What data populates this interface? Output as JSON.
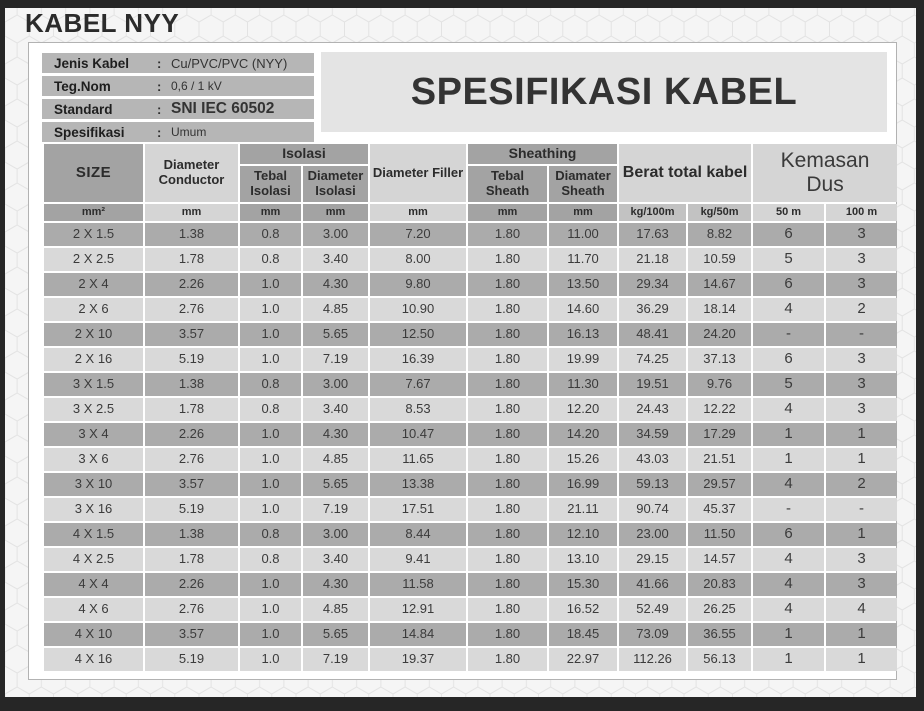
{
  "page_title": "KABEL NYY",
  "banner_title": "SPESIFIKASI KABEL",
  "info": {
    "separator": ":",
    "rows": [
      {
        "label": "Jenis Kabel",
        "value": "Cu/PVC/PVC (NYY)"
      },
      {
        "label": "Teg.Nom",
        "value": "0,6 / 1 kV"
      },
      {
        "label": "Standard",
        "value": "SNI IEC 60502"
      },
      {
        "label": "Spesifikasi",
        "value": "Umum"
      }
    ]
  },
  "table": {
    "headers": {
      "size": "SIZE",
      "diameter_conductor": "Diameter Conductor",
      "isolasi_group": "Isolasi",
      "tebal_isolasi": "Tebal Isolasi",
      "diameter_isolasi": "Diameter Isolasi",
      "diameter_filler": "Diameter Filler",
      "sheathing_group": "Sheathing",
      "tebal_sheath": "Tebal Sheath",
      "diamater_sheath": "Diamater Sheath",
      "berat_total": "Berat total kabel",
      "kemasan_dus": "Kemasan Dus"
    },
    "units": [
      "mm²",
      "mm",
      "mm",
      "mm",
      "mm",
      "mm",
      "mm",
      "kg/100m",
      "kg/50m",
      "50 m",
      "100 m"
    ],
    "rows": [
      [
        "2 X 1.5",
        "1.38",
        "0.8",
        "3.00",
        "7.20",
        "1.80",
        "11.00",
        "17.63",
        "8.82",
        "6",
        "3"
      ],
      [
        "2 X 2.5",
        "1.78",
        "0.8",
        "3.40",
        "8.00",
        "1.80",
        "11.70",
        "21.18",
        "10.59",
        "5",
        "3"
      ],
      [
        "2 X 4",
        "2.26",
        "1.0",
        "4.30",
        "9.80",
        "1.80",
        "13.50",
        "29.34",
        "14.67",
        "6",
        "3"
      ],
      [
        "2 X 6",
        "2.76",
        "1.0",
        "4.85",
        "10.90",
        "1.80",
        "14.60",
        "36.29",
        "18.14",
        "4",
        "2"
      ],
      [
        "2 X 10",
        "3.57",
        "1.0",
        "5.65",
        "12.50",
        "1.80",
        "16.13",
        "48.41",
        "24.20",
        "-",
        "-"
      ],
      [
        "2 X 16",
        "5.19",
        "1.0",
        "7.19",
        "16.39",
        "1.80",
        "19.99",
        "74.25",
        "37.13",
        "6",
        "3"
      ],
      [
        "3 X 1.5",
        "1.38",
        "0.8",
        "3.00",
        "7.67",
        "1.80",
        "11.30",
        "19.51",
        "9.76",
        "5",
        "3"
      ],
      [
        "3 X 2.5",
        "1.78",
        "0.8",
        "3.40",
        "8.53",
        "1.80",
        "12.20",
        "24.43",
        "12.22",
        "4",
        "3"
      ],
      [
        "3 X 4",
        "2.26",
        "1.0",
        "4.30",
        "10.47",
        "1.80",
        "14.20",
        "34.59",
        "17.29",
        "1",
        "1"
      ],
      [
        "3 X 6",
        "2.76",
        "1.0",
        "4.85",
        "11.65",
        "1.80",
        "15.26",
        "43.03",
        "21.51",
        "1",
        "1"
      ],
      [
        "3 X 10",
        "3.57",
        "1.0",
        "5.65",
        "13.38",
        "1.80",
        "16.99",
        "59.13",
        "29.57",
        "4",
        "2"
      ],
      [
        "3 X 16",
        "5.19",
        "1.0",
        "7.19",
        "17.51",
        "1.80",
        "21.11",
        "90.74",
        "45.37",
        "-",
        "-"
      ],
      [
        "4 X 1.5",
        "1.38",
        "0.8",
        "3.00",
        "8.44",
        "1.80",
        "12.10",
        "23.00",
        "11.50",
        "6",
        "1"
      ],
      [
        "4 X 2.5",
        "1.78",
        "0.8",
        "3.40",
        "9.41",
        "1.80",
        "13.10",
        "29.15",
        "14.57",
        "4",
        "3"
      ],
      [
        "4 X 4",
        "2.26",
        "1.0",
        "4.30",
        "11.58",
        "1.80",
        "15.30",
        "41.66",
        "20.83",
        "4",
        "3"
      ],
      [
        "4 X 6",
        "2.76",
        "1.0",
        "4.85",
        "12.91",
        "1.80",
        "16.52",
        "52.49",
        "26.25",
        "4",
        "4"
      ],
      [
        "4 X 10",
        "3.57",
        "1.0",
        "5.65",
        "14.84",
        "1.80",
        "18.45",
        "73.09",
        "36.55",
        "1",
        "1"
      ],
      [
        "4 X 16",
        "5.19",
        "1.0",
        "7.19",
        "19.37",
        "1.80",
        "22.97",
        "112.26",
        "56.13",
        "1",
        "1"
      ]
    ]
  },
  "colors": {
    "frame": "#262626",
    "header_dark": "#a3a3a3",
    "header_light": "#d5d5d5",
    "header_mid": "#c2c2c2",
    "row_dark": "#ababab",
    "row_light": "#d9d9d9",
    "info_bar": "#b6b6b6",
    "banner_bg": "#e4e4e4",
    "hex_line": "#e3e3e3"
  }
}
